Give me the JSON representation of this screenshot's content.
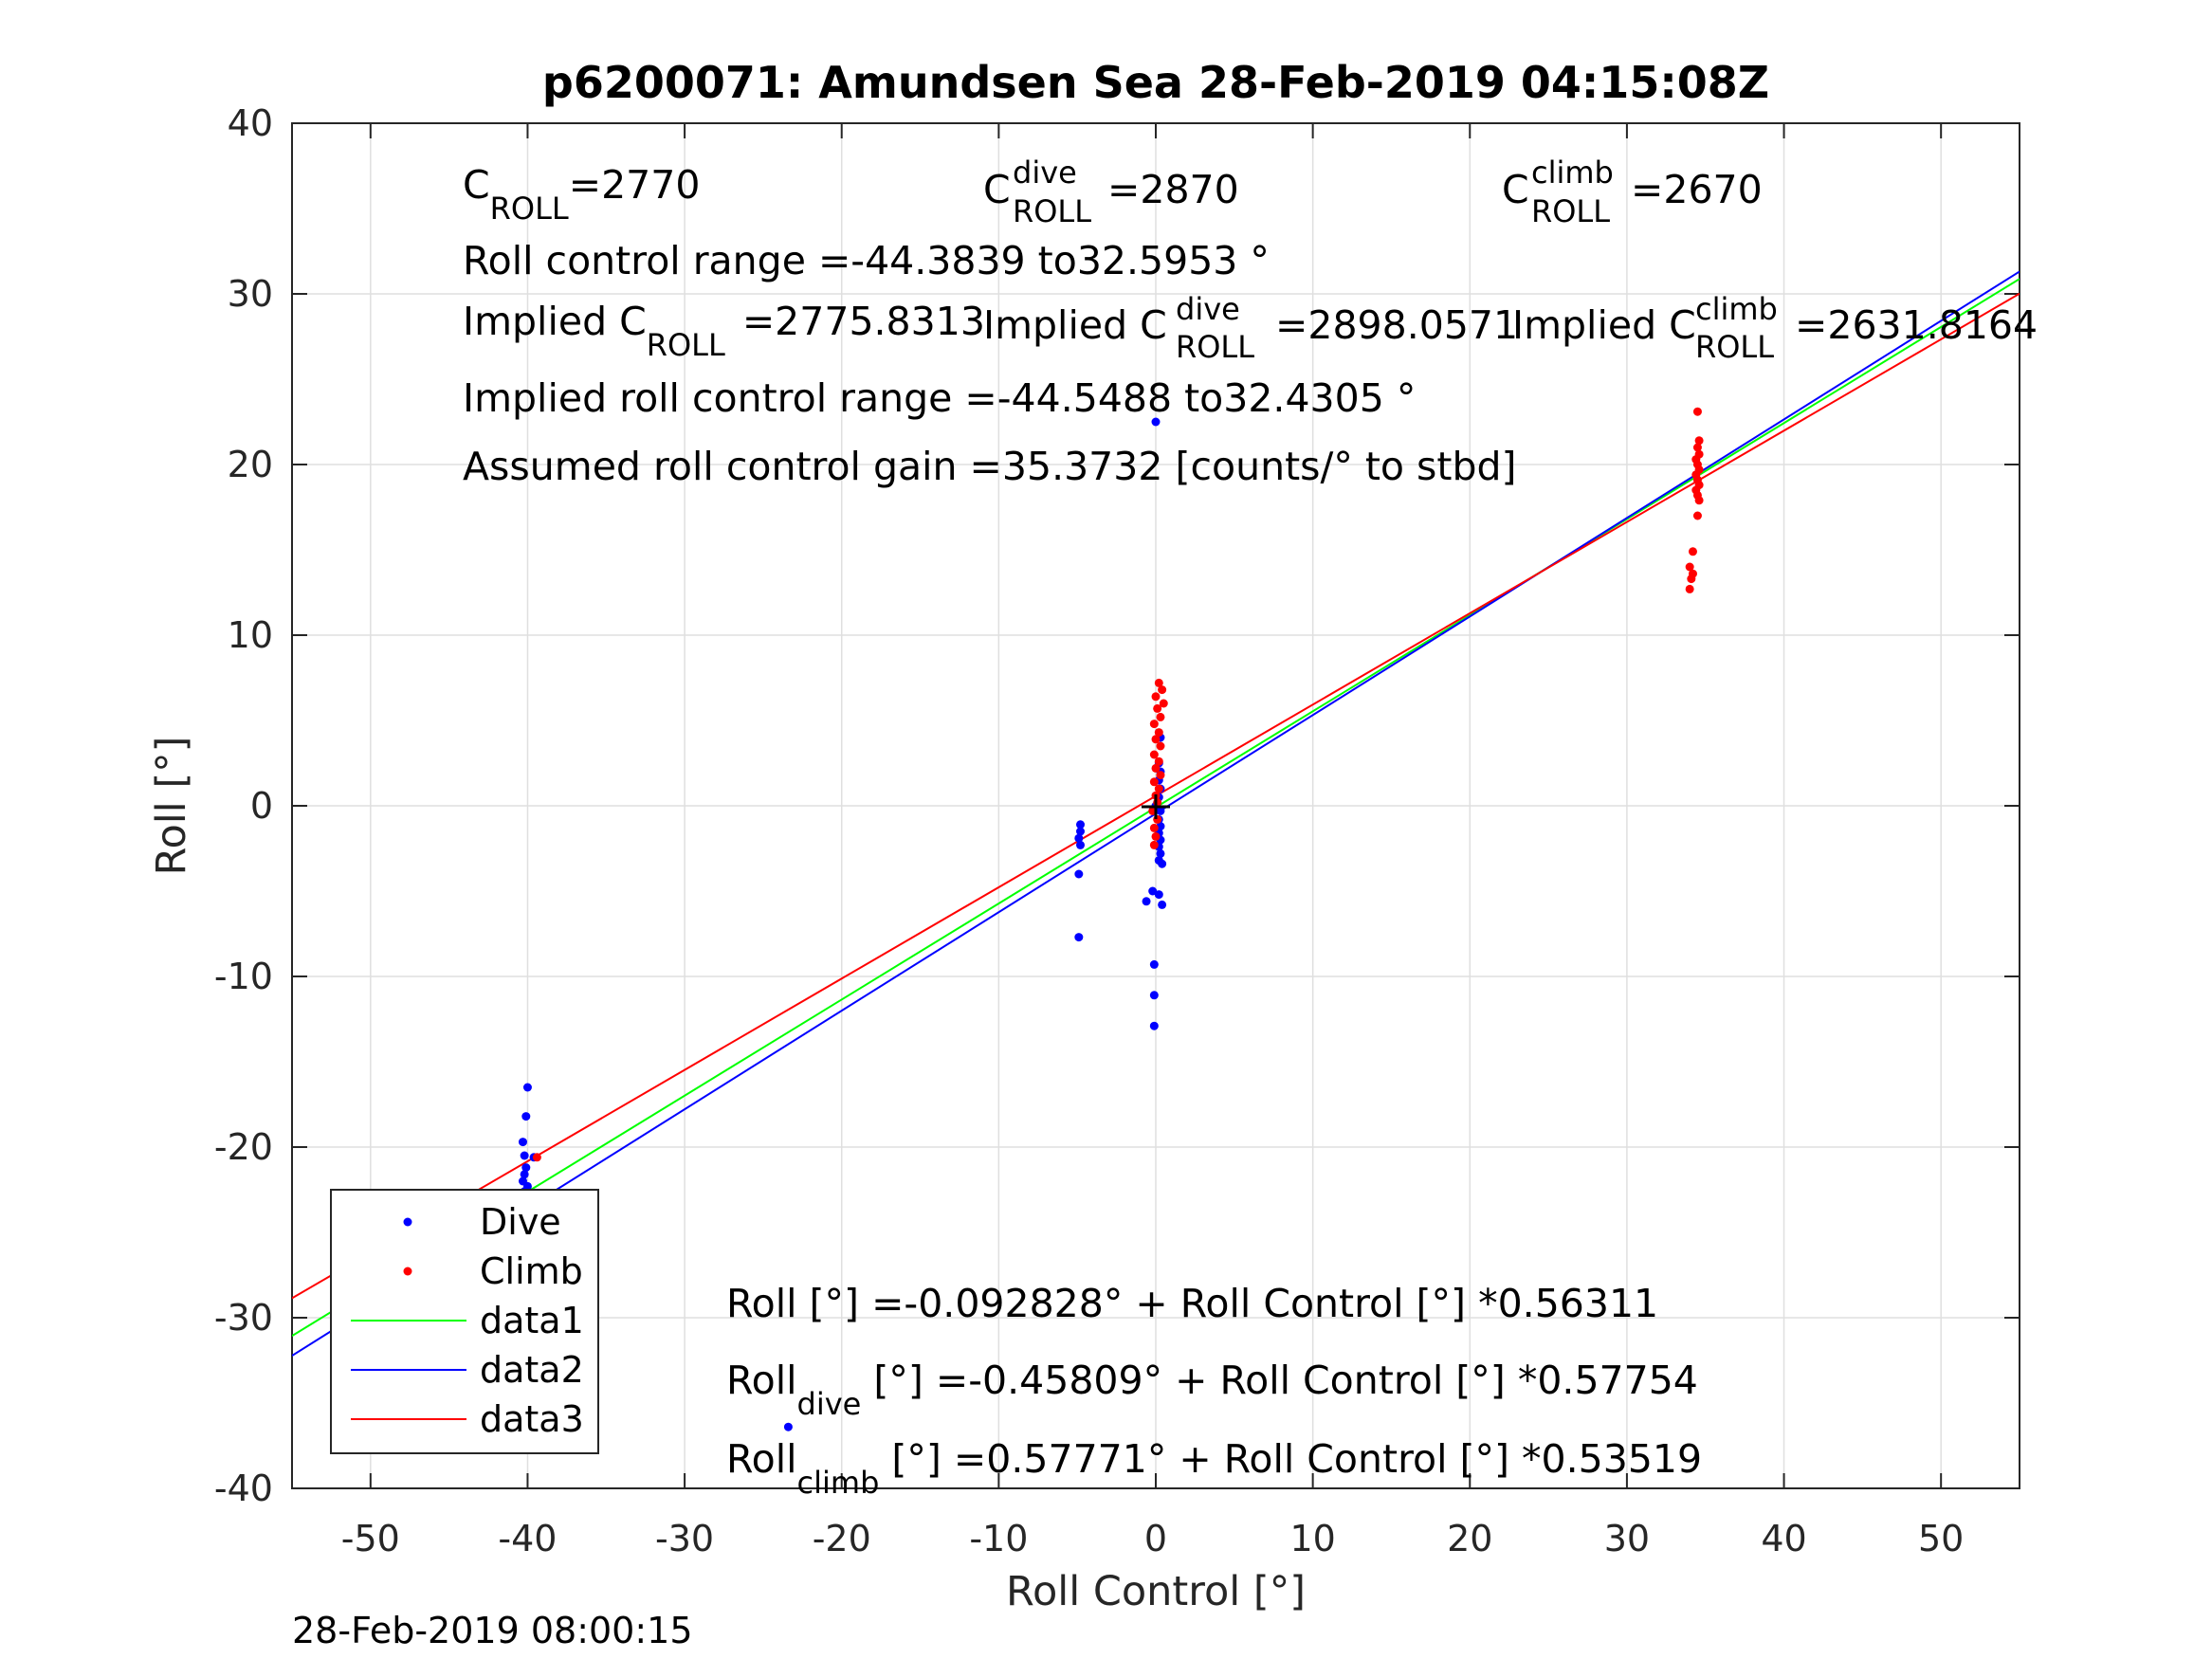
{
  "chart_data": {
    "type": "scatter",
    "title": "p6200071: Amundsen Sea 28-Feb-2019 04:15:08Z",
    "xlabel": "Roll Control [°]",
    "ylabel": "Roll [°]",
    "xlim": [
      -55,
      55
    ],
    "ylim": [
      -40,
      40
    ],
    "xticks": [
      -50,
      -40,
      -30,
      -20,
      -10,
      0,
      10,
      20,
      30,
      40,
      50
    ],
    "yticks": [
      -40,
      -30,
      -20,
      -10,
      0,
      10,
      20,
      30,
      40
    ],
    "xtick_labels": [
      "-50",
      "-40",
      "-30",
      "-20",
      "-10",
      "0",
      "10",
      "20",
      "30",
      "40",
      "50"
    ],
    "ytick_labels": [
      "-40",
      "-30",
      "-20",
      "-10",
      "0",
      "10",
      "20",
      "30",
      "40"
    ],
    "grid": true,
    "legend_position": "bottom-left",
    "series": [
      {
        "name": "Dive",
        "kind": "points",
        "color": "#0000ff",
        "points": [
          [
            -40.0,
            -16.5
          ],
          [
            -40.1,
            -18.2
          ],
          [
            -40.3,
            -19.7
          ],
          [
            -40.2,
            -20.5
          ],
          [
            -39.6,
            -20.6
          ],
          [
            -40.1,
            -21.2
          ],
          [
            -40.2,
            -21.6
          ],
          [
            -40.3,
            -22.0
          ],
          [
            -40.0,
            -22.3
          ],
          [
            -40.2,
            -22.6
          ],
          [
            -40.1,
            -23.0
          ],
          [
            -40.3,
            -23.3
          ],
          [
            -40.0,
            -23.6
          ],
          [
            -40.2,
            -24.0
          ],
          [
            -40.1,
            -24.3
          ],
          [
            -40.3,
            -24.7
          ],
          [
            -40.0,
            -25.0
          ],
          [
            -40.2,
            -25.3
          ],
          [
            -40.1,
            -25.7
          ],
          [
            -40.3,
            -26.1
          ],
          [
            -40.0,
            -26.5
          ],
          [
            -40.2,
            -27.0
          ],
          [
            -40.1,
            -27.5
          ],
          [
            -47.7,
            -24.1
          ],
          [
            -23.4,
            -36.4
          ],
          [
            -4.8,
            -1.1
          ],
          [
            -4.8,
            -1.5
          ],
          [
            -4.9,
            -1.9
          ],
          [
            -4.8,
            -2.3
          ],
          [
            -4.9,
            -4.0
          ],
          [
            -4.9,
            -7.7
          ],
          [
            0.0,
            22.5
          ],
          [
            0.3,
            4.0
          ],
          [
            0.2,
            2.5
          ],
          [
            0.3,
            2.0
          ],
          [
            0.2,
            1.5
          ],
          [
            0.3,
            1.0
          ],
          [
            0.2,
            0.5
          ],
          [
            0.0,
            0.0
          ],
          [
            0.3,
            -0.3
          ],
          [
            0.2,
            -0.8
          ],
          [
            0.3,
            -1.2
          ],
          [
            0.2,
            -1.6
          ],
          [
            0.3,
            -2.0
          ],
          [
            0.2,
            -2.4
          ],
          [
            0.3,
            -2.8
          ],
          [
            0.2,
            -3.2
          ],
          [
            0.4,
            -3.4
          ],
          [
            -0.2,
            -5.0
          ],
          [
            0.2,
            -5.2
          ],
          [
            -0.6,
            -5.6
          ],
          [
            0.4,
            -5.8
          ],
          [
            -0.1,
            -9.3
          ],
          [
            -0.1,
            -11.1
          ],
          [
            -0.1,
            -12.9
          ]
        ]
      },
      {
        "name": "Climb",
        "kind": "points",
        "color": "#ff0000",
        "points": [
          [
            -47.6,
            -27.0
          ],
          [
            -39.4,
            -20.6
          ],
          [
            0.2,
            7.2
          ],
          [
            0.4,
            6.8
          ],
          [
            0.0,
            6.4
          ],
          [
            0.5,
            6.0
          ],
          [
            0.1,
            5.7
          ],
          [
            0.3,
            5.2
          ],
          [
            -0.1,
            4.8
          ],
          [
            0.2,
            4.3
          ],
          [
            0.0,
            3.9
          ],
          [
            0.3,
            3.5
          ],
          [
            -0.1,
            3.0
          ],
          [
            0.2,
            2.6
          ],
          [
            0.0,
            2.2
          ],
          [
            0.3,
            1.8
          ],
          [
            -0.1,
            1.4
          ],
          [
            0.2,
            1.0
          ],
          [
            0.0,
            0.6
          ],
          [
            0.1,
            0.2
          ],
          [
            -0.2,
            -0.3
          ],
          [
            0.1,
            -0.8
          ],
          [
            -0.1,
            -1.3
          ],
          [
            0.0,
            -1.8
          ],
          [
            -0.1,
            -2.3
          ],
          [
            34.5,
            23.1
          ],
          [
            34.6,
            21.4
          ],
          [
            34.5,
            21.0
          ],
          [
            34.6,
            20.6
          ],
          [
            34.4,
            20.3
          ],
          [
            34.5,
            20.0
          ],
          [
            34.6,
            19.7
          ],
          [
            34.4,
            19.4
          ],
          [
            34.5,
            19.1
          ],
          [
            34.6,
            18.8
          ],
          [
            34.4,
            18.5
          ],
          [
            34.5,
            18.2
          ],
          [
            34.6,
            17.9
          ],
          [
            34.5,
            17.0
          ],
          [
            34.2,
            14.9
          ],
          [
            34.0,
            14.0
          ],
          [
            34.2,
            13.6
          ],
          [
            34.1,
            13.3
          ],
          [
            34.0,
            12.7
          ]
        ]
      },
      {
        "name": "data1",
        "kind": "line",
        "color": "#00ff00",
        "intercept": -0.092828,
        "slope": 0.56311
      },
      {
        "name": "data2",
        "kind": "line",
        "color": "#0000ff",
        "intercept": -0.45809,
        "slope": 0.57754
      },
      {
        "name": "data3",
        "kind": "line",
        "color": "#ff0000",
        "intercept": 0.57771,
        "slope": 0.53519
      }
    ],
    "annotations": {
      "c_roll_base": "C",
      "c_roll_sub": "ROLL",
      "c_roll_val": "=2770",
      "c_dive_base": "C",
      "c_dive_sup": "dive",
      "c_dive_sub": "ROLL",
      "c_dive_val": "=2870",
      "c_climb_base": "C",
      "c_climb_sup": "climb",
      "c_climb_sub": "ROLL",
      "c_climb_val": "=2670",
      "range": "Roll control range =-44.3839 to32.5953 °",
      "implied_base": "Implied C",
      "implied_sub": "ROLL",
      "implied_val": "=2775.8313",
      "implied_dive_base": "Implied C",
      "implied_dive_sup": "dive",
      "implied_dive_sub": "ROLL",
      "implied_dive_val": "=2898.0571",
      "implied_climb_base": "Implied C",
      "implied_climb_sup": "climb",
      "implied_climb_sub": "ROLL",
      "implied_climb_val": "=2631.8164",
      "implied_range": "Implied roll control range =-44.5488 to32.4305 °",
      "gain": "Assumed roll control gain =35.3732 [counts/° to stbd]",
      "fit_all": "Roll [°] =-0.092828° + Roll Control [°] *0.56311",
      "fit_dive_base": "Roll",
      "fit_dive_sub": "dive",
      "fit_dive_rest": " [°] =-0.45809° + Roll Control [°] *0.57754",
      "fit_climb_base": "Roll",
      "fit_climb_sub": "climb",
      "fit_climb_rest": " [°] =0.57771° + Roll Control [°] *0.53519"
    }
  },
  "timestamp": "28-Feb-2019 08:00:15"
}
